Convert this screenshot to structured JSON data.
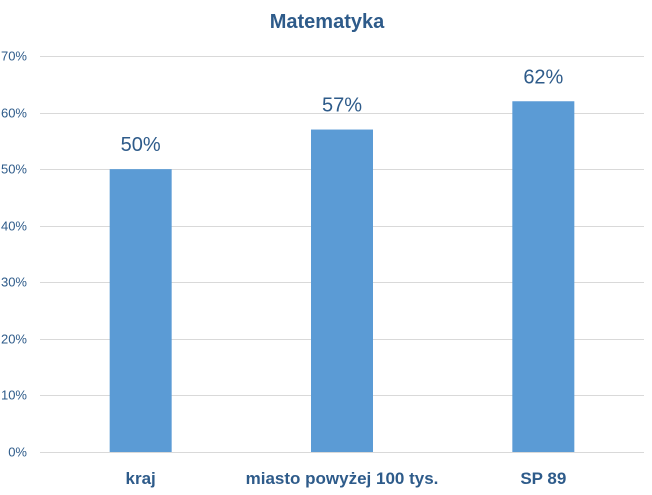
{
  "chart_data": {
    "type": "bar",
    "title": "Matematyka",
    "xlabel": "",
    "ylabel": "",
    "categories": [
      "kraj",
      "miasto powyżej 100 tys.",
      "SP 89"
    ],
    "values": [
      50,
      57,
      62
    ],
    "value_labels": [
      "50%",
      "57%",
      "62%"
    ],
    "ylim": [
      0,
      70
    ],
    "y_ticks": [
      0,
      10,
      20,
      30,
      40,
      50,
      60,
      70
    ],
    "y_tick_labels": [
      "0%",
      "10%",
      "20%",
      "30%",
      "40%",
      "50%",
      "60%",
      "70%"
    ],
    "grid": true,
    "legend": "none"
  },
  "colors": {
    "bar": "#5b9bd5",
    "title": "#2e5b8a",
    "data_label": "#2e5b8a",
    "category_label": "#2e5b8a",
    "tick_label": "#2e5b8a",
    "grid": "#d9d9d9",
    "axis": "#d9d9d9"
  }
}
